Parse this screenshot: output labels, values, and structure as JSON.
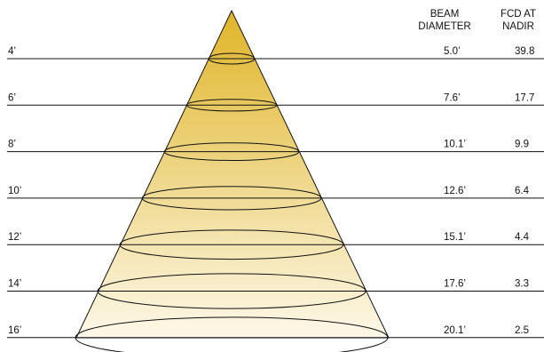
{
  "headers": {
    "beam": [
      "BEAM",
      "DIAMETER"
    ],
    "fcd": [
      "FCD AT",
      "NADIR"
    ]
  },
  "rows": [
    {
      "height": "4’",
      "beam": "5.0’",
      "fcd": "39.8"
    },
    {
      "height": "6’",
      "beam": "7.6’",
      "fcd": "17.7"
    },
    {
      "height": "8’",
      "beam": "10.1’",
      "fcd": "9.9"
    },
    {
      "height": "10’",
      "beam": "12.6’",
      "fcd": "6.4"
    },
    {
      "height": "12’",
      "beam": "15.1’",
      "fcd": "4.4"
    },
    {
      "height": "14’",
      "beam": "17.6’",
      "fcd": "3.3"
    },
    {
      "height": "16’",
      "beam": "20.1’",
      "fcd": "2.5"
    }
  ],
  "colors": {
    "cone_top": "#e0b528",
    "cone_bottom": "#fdf8e8",
    "line": "#111111"
  }
}
